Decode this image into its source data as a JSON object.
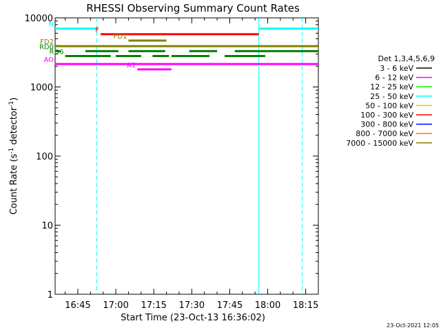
{
  "chart_data": {
    "type": "line",
    "title": "RHESSI Observing Summary Count Rates",
    "xlabel": "Start Time (23-Oct-13 16:36:02)",
    "ylabel": "Count Rate (s⁻¹ detector⁻¹)",
    "ylabel_main": "Count Rate (s",
    "ylabel_sup1": "-1",
    "ylabel_mid": " detector",
    "ylabel_sup2": "-1",
    "ylabel_end": ")",
    "yscale": "log",
    "ylim": [
      1,
      10000
    ],
    "xlim": [
      "16:36:02",
      "18:20:00"
    ],
    "y_ticks": [
      {
        "value": 1,
        "label": "1"
      },
      {
        "value": 10,
        "label": "10"
      },
      {
        "value": 100,
        "label": "100"
      },
      {
        "value": 1000,
        "label": "1000"
      },
      {
        "value": 10000,
        "label": "10000"
      }
    ],
    "x_ticks": [
      {
        "value": "16:45",
        "label": "16:45"
      },
      {
        "value": "17:00",
        "label": "17:00"
      },
      {
        "value": "17:15",
        "label": "17:15"
      },
      {
        "value": "17:30",
        "label": "17:30"
      },
      {
        "value": "17:45",
        "label": "17:45"
      },
      {
        "value": "18:00",
        "label": "18:00"
      },
      {
        "value": "18:15",
        "label": "18:15"
      }
    ],
    "legend_title": "Det 1,3,4,5,6,9",
    "legend_position": "right",
    "series": [
      {
        "name": "3 - 6 keV",
        "color": "#000000",
        "values": []
      },
      {
        "name": "6 - 12 keV",
        "color": "#ff00ff",
        "values": []
      },
      {
        "name": "12 - 25 keV",
        "color": "#00ff00",
        "values": []
      },
      {
        "name": "25 - 50 keV",
        "color": "#00ffff",
        "values": []
      },
      {
        "name": "50 - 100 keV",
        "color": "#d0d000",
        "values": []
      },
      {
        "name": "100 - 300 keV",
        "color": "#ff0000",
        "values": []
      },
      {
        "name": "300 - 800 keV",
        "color": "#0000ff",
        "values": []
      },
      {
        "name": "800 - 7000 keV",
        "color": "#ff8000",
        "values": []
      },
      {
        "name": "7000 - 15000 keV",
        "color": "#808000",
        "values": []
      }
    ],
    "flags": [
      {
        "label": "N",
        "color": "#00ffff",
        "level": 7000,
        "segments": [
          [
            "16:36:02",
            "16:53:00"
          ],
          [
            "17:56:30",
            "18:20:00"
          ]
        ]
      },
      {
        "label": "F",
        "color": "#ff0000",
        "level": 5800,
        "segments": [
          [
            "16:54:00",
            "17:56:30"
          ]
        ]
      },
      {
        "label": "FD1",
        "color": "#808000",
        "level": 4700,
        "segments": [
          [
            "17:05:00",
            "17:20:00"
          ]
        ]
      },
      {
        "label": "FD2",
        "color": "#808000",
        "level": 3900,
        "segments": [
          [
            "16:36:02",
            "18:20:00"
          ]
        ]
      },
      {
        "label": "RD0",
        "color": "#008000",
        "level": 3300,
        "segments": [
          [
            "16:36:02",
            "16:38:00"
          ],
          [
            "16:48:00",
            "17:01:00"
          ],
          [
            "17:05:00",
            "17:19:30"
          ],
          [
            "17:29:00",
            "17:40:00"
          ],
          [
            "17:47:00",
            "18:20:00"
          ]
        ]
      },
      {
        "label": "RD6",
        "color": "#008000",
        "level": 2800,
        "segments": [
          [
            "16:40:00",
            "16:58:00"
          ],
          [
            "17:00:00",
            "17:10:00"
          ],
          [
            "17:14:30",
            "17:21:00"
          ],
          [
            "17:22:00",
            "17:37:00"
          ],
          [
            "17:43:00",
            "17:59:00"
          ]
        ]
      },
      {
        "label": "AO",
        "color": "#ff00ff",
        "level": 2150,
        "segments": [
          [
            "16:36:02",
            "18:20:00"
          ]
        ]
      },
      {
        "label": "A1",
        "color": "#ff00ff",
        "level": 1800,
        "segments": [
          [
            "17:08:30",
            "17:22:00"
          ]
        ]
      }
    ],
    "vertical_markers": [
      {
        "time": "16:52:30",
        "color": "#00ffff",
        "style": "dashed"
      },
      {
        "time": "17:56:30",
        "color": "#00ffff",
        "style": "solid"
      },
      {
        "time": "18:13:40",
        "color": "#00ffff",
        "style": "dashed"
      }
    ]
  },
  "footer": {
    "timestamp": "23-Oct-2021 12:05"
  }
}
